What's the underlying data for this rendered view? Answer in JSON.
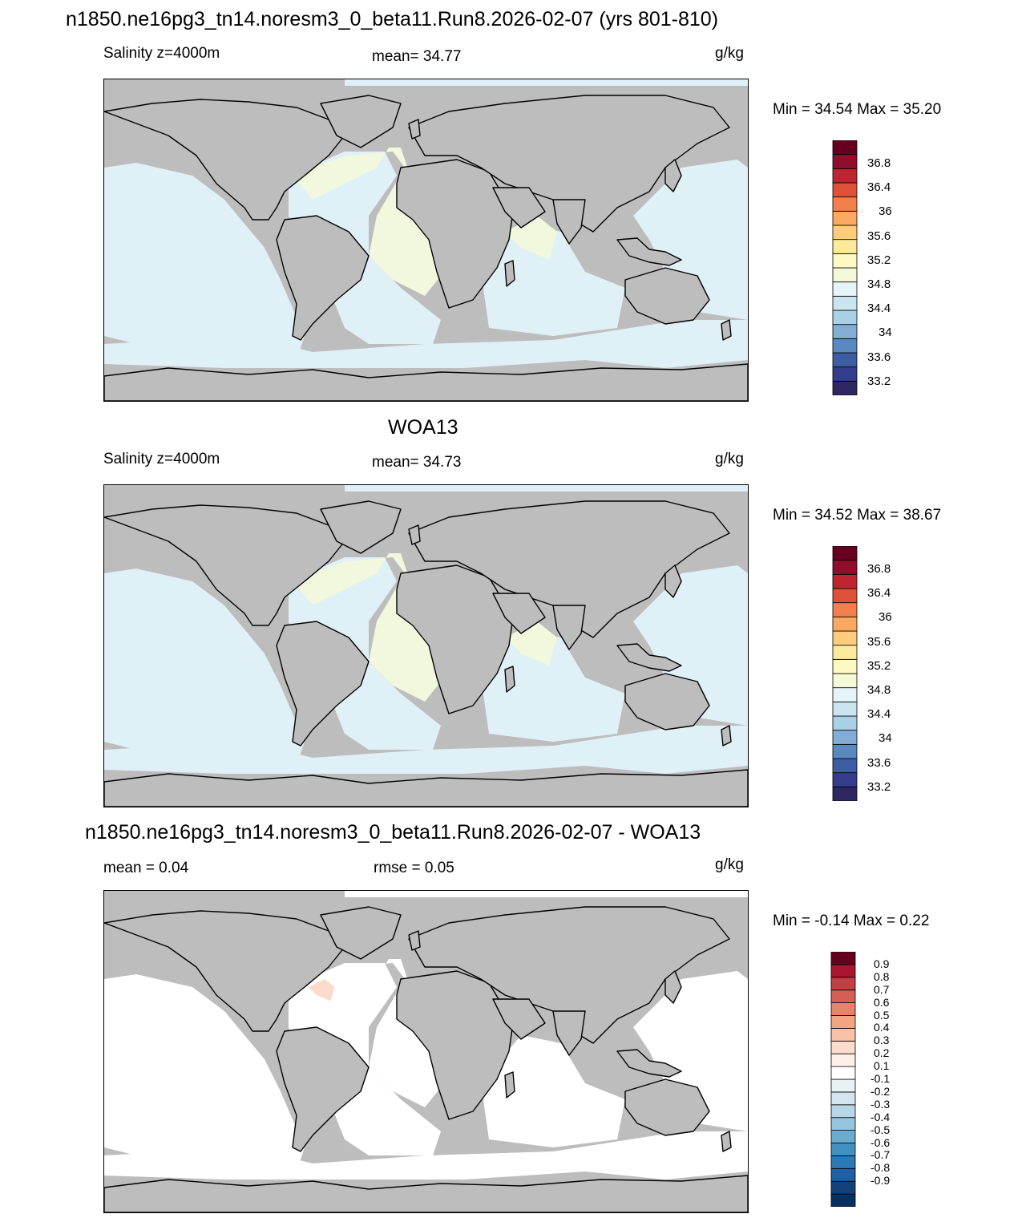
{
  "colors": {
    "land": "#bdbdbd",
    "coast": "#000000",
    "ocean_model": "#dff0f7",
    "ocean_salty": "#f1f8dd",
    "ocean_diff": "#ffffff",
    "diff_pos": "#fbdccb"
  },
  "panels": [
    {
      "title": "n1850.ne16pg3_tn14.noresm3_0_beta11.Run8.2026-02-07 (yrs 801-810)",
      "left_label": "Salinity z=4000m",
      "center_label": "mean=  34.77",
      "units": "g/kg",
      "minmax": "Min =  34.54 Max =  35.20",
      "colorbar": {
        "labels": [
          "36.8",
          "36.4",
          "36",
          "35.6",
          "35.2",
          "34.8",
          "34.4",
          "34",
          "33.6",
          "33.2"
        ],
        "colors": [
          "#2e2761",
          "#333e8c",
          "#3d5ea5",
          "#5a89c0",
          "#82aed4",
          "#a9d0e4",
          "#c9e6f0",
          "#e5f4f7",
          "#f4f9d7",
          "#fef8c2",
          "#fde99c",
          "#fdcd7c",
          "#fba960",
          "#f37f4b",
          "#de5139",
          "#bf2530",
          "#8f0e2c",
          "#67001f"
        ]
      }
    },
    {
      "title": "WOA13",
      "left_label": "Salinity z=4000m",
      "center_label": "mean=  34.73",
      "units": "g/kg",
      "minmax": "Min =  34.52 Max =  38.67",
      "colorbar": {
        "labels": [
          "36.8",
          "36.4",
          "36",
          "35.6",
          "35.2",
          "34.8",
          "34.4",
          "34",
          "33.6",
          "33.2"
        ],
        "colors": [
          "#2e2761",
          "#333e8c",
          "#3d5ea5",
          "#5a89c0",
          "#82aed4",
          "#a9d0e4",
          "#c9e6f0",
          "#e5f4f7",
          "#f4f9d7",
          "#fef8c2",
          "#fde99c",
          "#fdcd7c",
          "#fba960",
          "#f37f4b",
          "#de5139",
          "#bf2530",
          "#8f0e2c",
          "#67001f"
        ]
      }
    },
    {
      "title": "n1850.ne16pg3_tn14.noresm3_0_beta11.Run8.2026-02-07 - WOA13",
      "left_label": "mean =   0.04",
      "center_label": "rmse =   0.05",
      "units": "g/kg",
      "minmax": "Min =  -0.14 Max =   0.22",
      "colorbar": {
        "labels": [
          "0.9",
          "0.8",
          "0.7",
          "0.6",
          "0.5",
          "0.4",
          "0.3",
          "0.2",
          "0.1",
          "-0.1",
          "-0.2",
          "-0.3",
          "-0.4",
          "-0.5",
          "-0.6",
          "-0.7",
          "-0.8",
          "-0.9"
        ],
        "colors": [
          "#053061",
          "#13427b",
          "#1f5fa3",
          "#2f78b6",
          "#4391c3",
          "#6aaacf",
          "#93c5de",
          "#b6d7e8",
          "#d3e5ef",
          "#e9f1f5",
          "#ffffff",
          "#fdf0e9",
          "#fbdccb",
          "#f8c2a6",
          "#f3a481",
          "#e8836b",
          "#d65f55",
          "#c33e45",
          "#a8172f",
          "#67001f"
        ]
      }
    }
  ]
}
